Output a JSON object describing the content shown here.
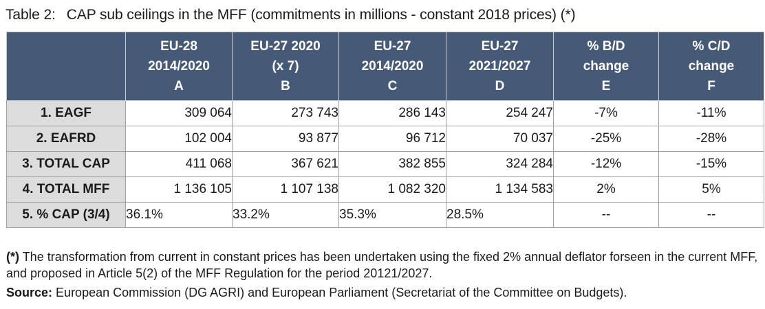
{
  "caption": {
    "number": "Table 2:",
    "title": "CAP sub ceilings in the MFF (commitments in millions - constant 2018 prices) (*)"
  },
  "table": {
    "columns": [
      {
        "line1": "EU-28",
        "line2": "2014/2020",
        "line3": "A"
      },
      {
        "line1": "EU-27 2020",
        "line2": "(x 7)",
        "line3": "B"
      },
      {
        "line1": "EU-27",
        "line2": "2014/2020",
        "line3": "C"
      },
      {
        "line1": "EU-27",
        "line2": "2021/2027",
        "line3": "D"
      },
      {
        "line1": "% B/D",
        "line2": "change",
        "line3": "E"
      },
      {
        "line1": "% C/D",
        "line2": "change",
        "line3": "F"
      }
    ],
    "rows": [
      {
        "label": "1. EAGF",
        "cells": [
          "309 064",
          "273 743",
          "286 143",
          "254 247",
          "-7%",
          "-11%"
        ]
      },
      {
        "label": "2. EAFRD",
        "cells": [
          "102 004",
          "93 877",
          "96 712",
          "70 037",
          "-25%",
          "-28%"
        ]
      },
      {
        "label": "3. TOTAL CAP",
        "cells": [
          "411 068",
          "367 621",
          "382 855",
          "324 284",
          "-12%",
          "-15%"
        ]
      },
      {
        "label": "4. TOTAL MFF",
        "cells": [
          "1 136 105",
          "1 107 138",
          "1 082 320",
          "1 134 583",
          "2%",
          "5%"
        ]
      },
      {
        "label": "5. % CAP (3/4)",
        "cells": [
          "36.1%",
          "33.2%",
          "35.3%",
          "28.5%",
          "--",
          "--"
        ]
      }
    ]
  },
  "footnote": {
    "marker": "(*)",
    "text": "The transformation from current in constant prices has been undertaken using the fixed 2% annual deflator forseen in the current MFF, and proposed in Article 5(2) of the MFF Regulation for the period 20121/2027."
  },
  "source": {
    "label": "Source:",
    "text": "European Commission (DG AGRI) and European Parliament (Secretariat of the Committee on Budgets)."
  }
}
